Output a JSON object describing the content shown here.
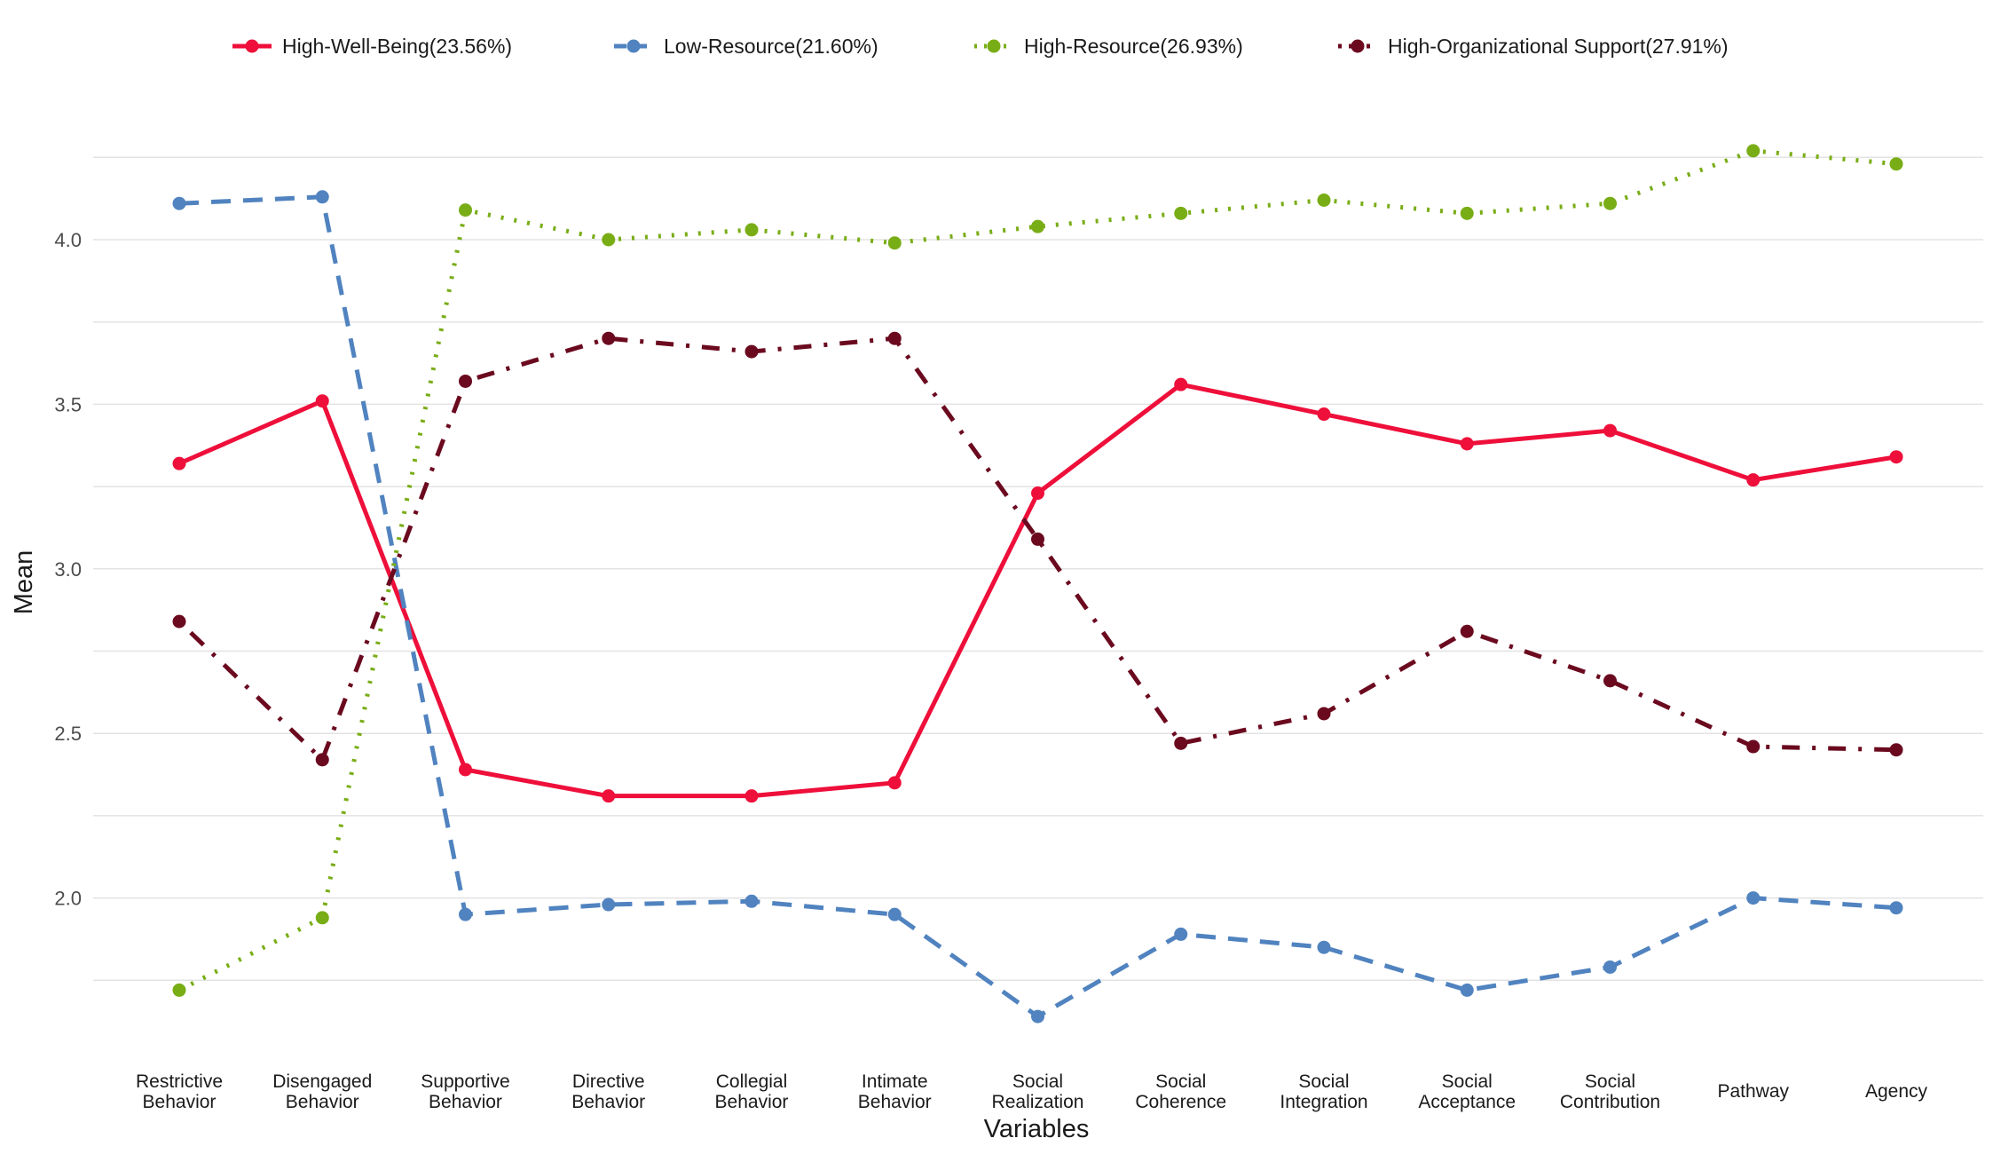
{
  "chart_data": {
    "type": "line",
    "title": "",
    "xlabel": "Variables",
    "ylabel": "Mean",
    "ylim": [
      1.55,
      4.35
    ],
    "y_ticks": [
      "2.0",
      "2.5",
      "3.0",
      "3.5",
      "4.0"
    ],
    "grid": true,
    "legend_position": "top",
    "categories": [
      [
        "Restrictive",
        "Behavior"
      ],
      [
        "Disengaged",
        "Behavior"
      ],
      [
        "Supportive",
        "Behavior"
      ],
      [
        "Directive",
        "Behavior"
      ],
      [
        "Collegial",
        "Behavior"
      ],
      [
        "Intimate",
        "Behavior"
      ],
      [
        "Social",
        "Realization"
      ],
      [
        "Social",
        "Coherence"
      ],
      [
        "Social",
        "Integration"
      ],
      [
        "Social",
        "Acceptance"
      ],
      [
        "Social",
        "Contribution"
      ],
      [
        "Pathway"
      ],
      [
        "Agency"
      ]
    ],
    "series": [
      {
        "name": "High-Well-Being(23.56%)",
        "color": "#ee0f3a",
        "dash": "solid",
        "values": [
          3.32,
          3.51,
          2.39,
          2.31,
          2.31,
          2.35,
          3.23,
          3.56,
          3.47,
          3.38,
          3.42,
          3.27,
          3.34
        ]
      },
      {
        "name": "Low-Resource(21.60%)",
        "color": "#5083bf",
        "dash": "dashed",
        "values": [
          4.11,
          4.13,
          1.95,
          1.98,
          1.99,
          1.95,
          1.64,
          1.89,
          1.85,
          1.72,
          1.79,
          2.0,
          1.97
        ]
      },
      {
        "name": "High-Resource(26.93%)",
        "color": "#79ad16",
        "dash": "dotted",
        "values": [
          1.72,
          1.94,
          4.09,
          4.0,
          4.03,
          3.99,
          4.04,
          4.08,
          4.12,
          4.08,
          4.11,
          4.27,
          4.23
        ]
      },
      {
        "name": "High-Organizational Support(27.91%)",
        "color": "#6b0a1f",
        "dash": "dotdash",
        "values": [
          2.84,
          2.42,
          3.57,
          3.7,
          3.66,
          3.7,
          3.09,
          2.47,
          2.56,
          2.81,
          2.66,
          2.46,
          2.45
        ]
      }
    ]
  }
}
